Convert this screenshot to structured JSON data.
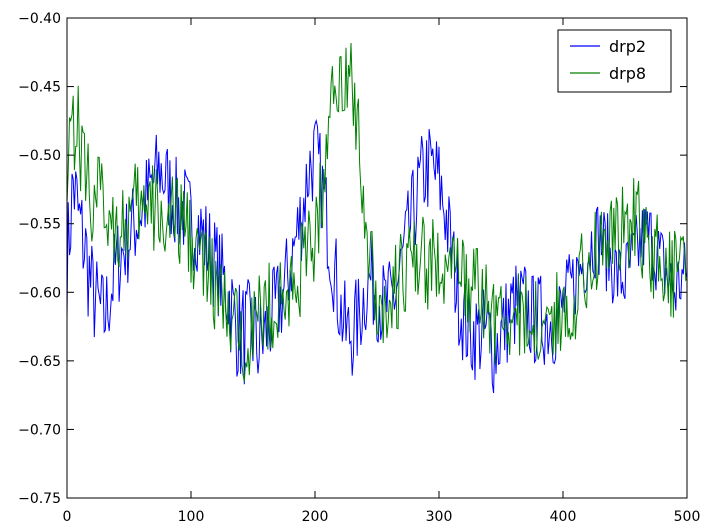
{
  "chart_data": {
    "type": "line",
    "title": "",
    "xlabel": "",
    "ylabel": "",
    "xlim": [
      0,
      500
    ],
    "ylim": [
      -0.75,
      -0.4
    ],
    "xticks": [
      0,
      100,
      200,
      300,
      400,
      500
    ],
    "xtick_labels": [
      "0",
      "100",
      "200",
      "300",
      "400",
      "500"
    ],
    "yticks": [
      -0.75,
      -0.7,
      -0.65,
      -0.6,
      -0.55,
      -0.5,
      -0.45,
      -0.4
    ],
    "ytick_labels": [
      "−0.75",
      "−0.70",
      "−0.65",
      "−0.60",
      "−0.55",
      "−0.50",
      "−0.45",
      "−0.40"
    ],
    "grid": false,
    "legend_position": "top-right",
    "x": [
      0,
      5,
      10,
      15,
      20,
      25,
      30,
      35,
      40,
      45,
      50,
      55,
      60,
      65,
      70,
      75,
      80,
      85,
      90,
      95,
      100,
      105,
      110,
      115,
      120,
      125,
      130,
      135,
      140,
      145,
      150,
      155,
      160,
      165,
      170,
      175,
      180,
      185,
      190,
      195,
      200,
      205,
      210,
      215,
      220,
      225,
      230,
      235,
      240,
      245,
      250,
      255,
      260,
      265,
      270,
      275,
      280,
      285,
      290,
      295,
      300,
      305,
      310,
      315,
      320,
      325,
      330,
      335,
      340,
      345,
      350,
      355,
      360,
      365,
      370,
      375,
      380,
      385,
      390,
      395,
      400,
      405,
      410,
      415,
      420,
      425,
      430,
      435,
      440,
      445,
      450,
      455,
      460,
      465,
      470,
      475,
      480,
      485,
      490,
      495,
      500
    ],
    "series": [
      {
        "name": "drp2",
        "color": "#0000ff",
        "values": [
          -0.58,
          -0.52,
          -0.55,
          -0.57,
          -0.6,
          -0.61,
          -0.62,
          -0.6,
          -0.58,
          -0.57,
          -0.56,
          -0.55,
          -0.54,
          -0.53,
          -0.52,
          -0.51,
          -0.52,
          -0.53,
          -0.54,
          -0.54,
          -0.55,
          -0.55,
          -0.56,
          -0.57,
          -0.58,
          -0.59,
          -0.6,
          -0.62,
          -0.63,
          -0.63,
          -0.63,
          -0.64,
          -0.63,
          -0.62,
          -0.61,
          -0.6,
          -0.58,
          -0.56,
          -0.54,
          -0.51,
          -0.5,
          -0.52,
          -0.55,
          -0.58,
          -0.61,
          -0.63,
          -0.63,
          -0.62,
          -0.6,
          -0.59,
          -0.6,
          -0.61,
          -0.61,
          -0.6,
          -0.58,
          -0.56,
          -0.54,
          -0.52,
          -0.51,
          -0.51,
          -0.52,
          -0.54,
          -0.57,
          -0.6,
          -0.62,
          -0.63,
          -0.63,
          -0.63,
          -0.63,
          -0.64,
          -0.63,
          -0.62,
          -0.61,
          -0.61,
          -0.61,
          -0.62,
          -0.62,
          -0.62,
          -0.62,
          -0.62,
          -0.61,
          -0.6,
          -0.59,
          -0.58,
          -0.57,
          -0.56,
          -0.56,
          -0.57,
          -0.58,
          -0.59,
          -0.59,
          -0.58,
          -0.57,
          -0.56,
          -0.56,
          -0.57,
          -0.58,
          -0.59,
          -0.6,
          -0.59,
          -0.59
        ],
        "amp": [
          0.04,
          0.04,
          0.04,
          0.04,
          0.04,
          0.035,
          0.035,
          0.035,
          0.035,
          0.035,
          0.035,
          0.035,
          0.035,
          0.035,
          0.035,
          0.035,
          0.035,
          0.035,
          0.035,
          0.035,
          0.035,
          0.035,
          0.035,
          0.035,
          0.035,
          0.035,
          0.04,
          0.04,
          0.04,
          0.04,
          0.04,
          0.04,
          0.035,
          0.035,
          0.035,
          0.035,
          0.035,
          0.035,
          0.035,
          0.035,
          0.035,
          0.035,
          0.035,
          0.035,
          0.035,
          0.035,
          0.035,
          0.035,
          0.035,
          0.035,
          0.035,
          0.035,
          0.035,
          0.035,
          0.035,
          0.035,
          0.035,
          0.035,
          0.035,
          0.035,
          0.035,
          0.035,
          0.035,
          0.035,
          0.035,
          0.035,
          0.035,
          0.035,
          0.035,
          0.04,
          0.035,
          0.035,
          0.035,
          0.035,
          0.035,
          0.035,
          0.035,
          0.035,
          0.035,
          0.035,
          0.03,
          0.03,
          0.03,
          0.03,
          0.03,
          0.03,
          0.03,
          0.03,
          0.03,
          0.03,
          0.03,
          0.03,
          0.03,
          0.03,
          0.03,
          0.03,
          0.03,
          0.03,
          0.03,
          0.03,
          0.03
        ]
      },
      {
        "name": "drp8",
        "color": "#008000",
        "values": [
          -0.49,
          -0.47,
          -0.49,
          -0.51,
          -0.53,
          -0.53,
          -0.54,
          -0.54,
          -0.55,
          -0.55,
          -0.55,
          -0.54,
          -0.54,
          -0.54,
          -0.54,
          -0.54,
          -0.55,
          -0.55,
          -0.55,
          -0.55,
          -0.56,
          -0.57,
          -0.58,
          -0.59,
          -0.6,
          -0.61,
          -0.62,
          -0.63,
          -0.63,
          -0.63,
          -0.62,
          -0.62,
          -0.61,
          -0.61,
          -0.61,
          -0.61,
          -0.6,
          -0.59,
          -0.58,
          -0.57,
          -0.56,
          -0.53,
          -0.49,
          -0.45,
          -0.44,
          -0.44,
          -0.45,
          -0.48,
          -0.54,
          -0.58,
          -0.6,
          -0.61,
          -0.61,
          -0.6,
          -0.59,
          -0.58,
          -0.58,
          -0.58,
          -0.58,
          -0.58,
          -0.58,
          -0.58,
          -0.58,
          -0.59,
          -0.59,
          -0.6,
          -0.6,
          -0.61,
          -0.61,
          -0.62,
          -0.62,
          -0.62,
          -0.62,
          -0.62,
          -0.62,
          -0.62,
          -0.62,
          -0.62,
          -0.62,
          -0.62,
          -0.61,
          -0.61,
          -0.6,
          -0.59,
          -0.58,
          -0.57,
          -0.56,
          -0.56,
          -0.56,
          -0.56,
          -0.55,
          -0.55,
          -0.55,
          -0.56,
          -0.57,
          -0.57,
          -0.58,
          -0.58,
          -0.59,
          -0.59,
          -0.59
        ],
        "amp": [
          0.045,
          0.045,
          0.04,
          0.04,
          0.04,
          0.035,
          0.035,
          0.035,
          0.035,
          0.035,
          0.035,
          0.035,
          0.035,
          0.035,
          0.035,
          0.035,
          0.035,
          0.035,
          0.035,
          0.035,
          0.035,
          0.035,
          0.035,
          0.035,
          0.035,
          0.035,
          0.035,
          0.035,
          0.035,
          0.035,
          0.035,
          0.035,
          0.035,
          0.035,
          0.035,
          0.035,
          0.035,
          0.035,
          0.035,
          0.035,
          0.035,
          0.035,
          0.03,
          0.03,
          0.03,
          0.03,
          0.03,
          0.03,
          0.035,
          0.035,
          0.035,
          0.035,
          0.035,
          0.035,
          0.035,
          0.035,
          0.035,
          0.035,
          0.035,
          0.035,
          0.035,
          0.035,
          0.035,
          0.035,
          0.035,
          0.035,
          0.035,
          0.035,
          0.035,
          0.035,
          0.035,
          0.035,
          0.035,
          0.035,
          0.035,
          0.035,
          0.035,
          0.035,
          0.035,
          0.035,
          0.035,
          0.035,
          0.035,
          0.035,
          0.035,
          0.035,
          0.035,
          0.035,
          0.035,
          0.035,
          0.035,
          0.035,
          0.035,
          0.035,
          0.035,
          0.035,
          0.035,
          0.035,
          0.035,
          0.035,
          0.035
        ]
      }
    ]
  }
}
